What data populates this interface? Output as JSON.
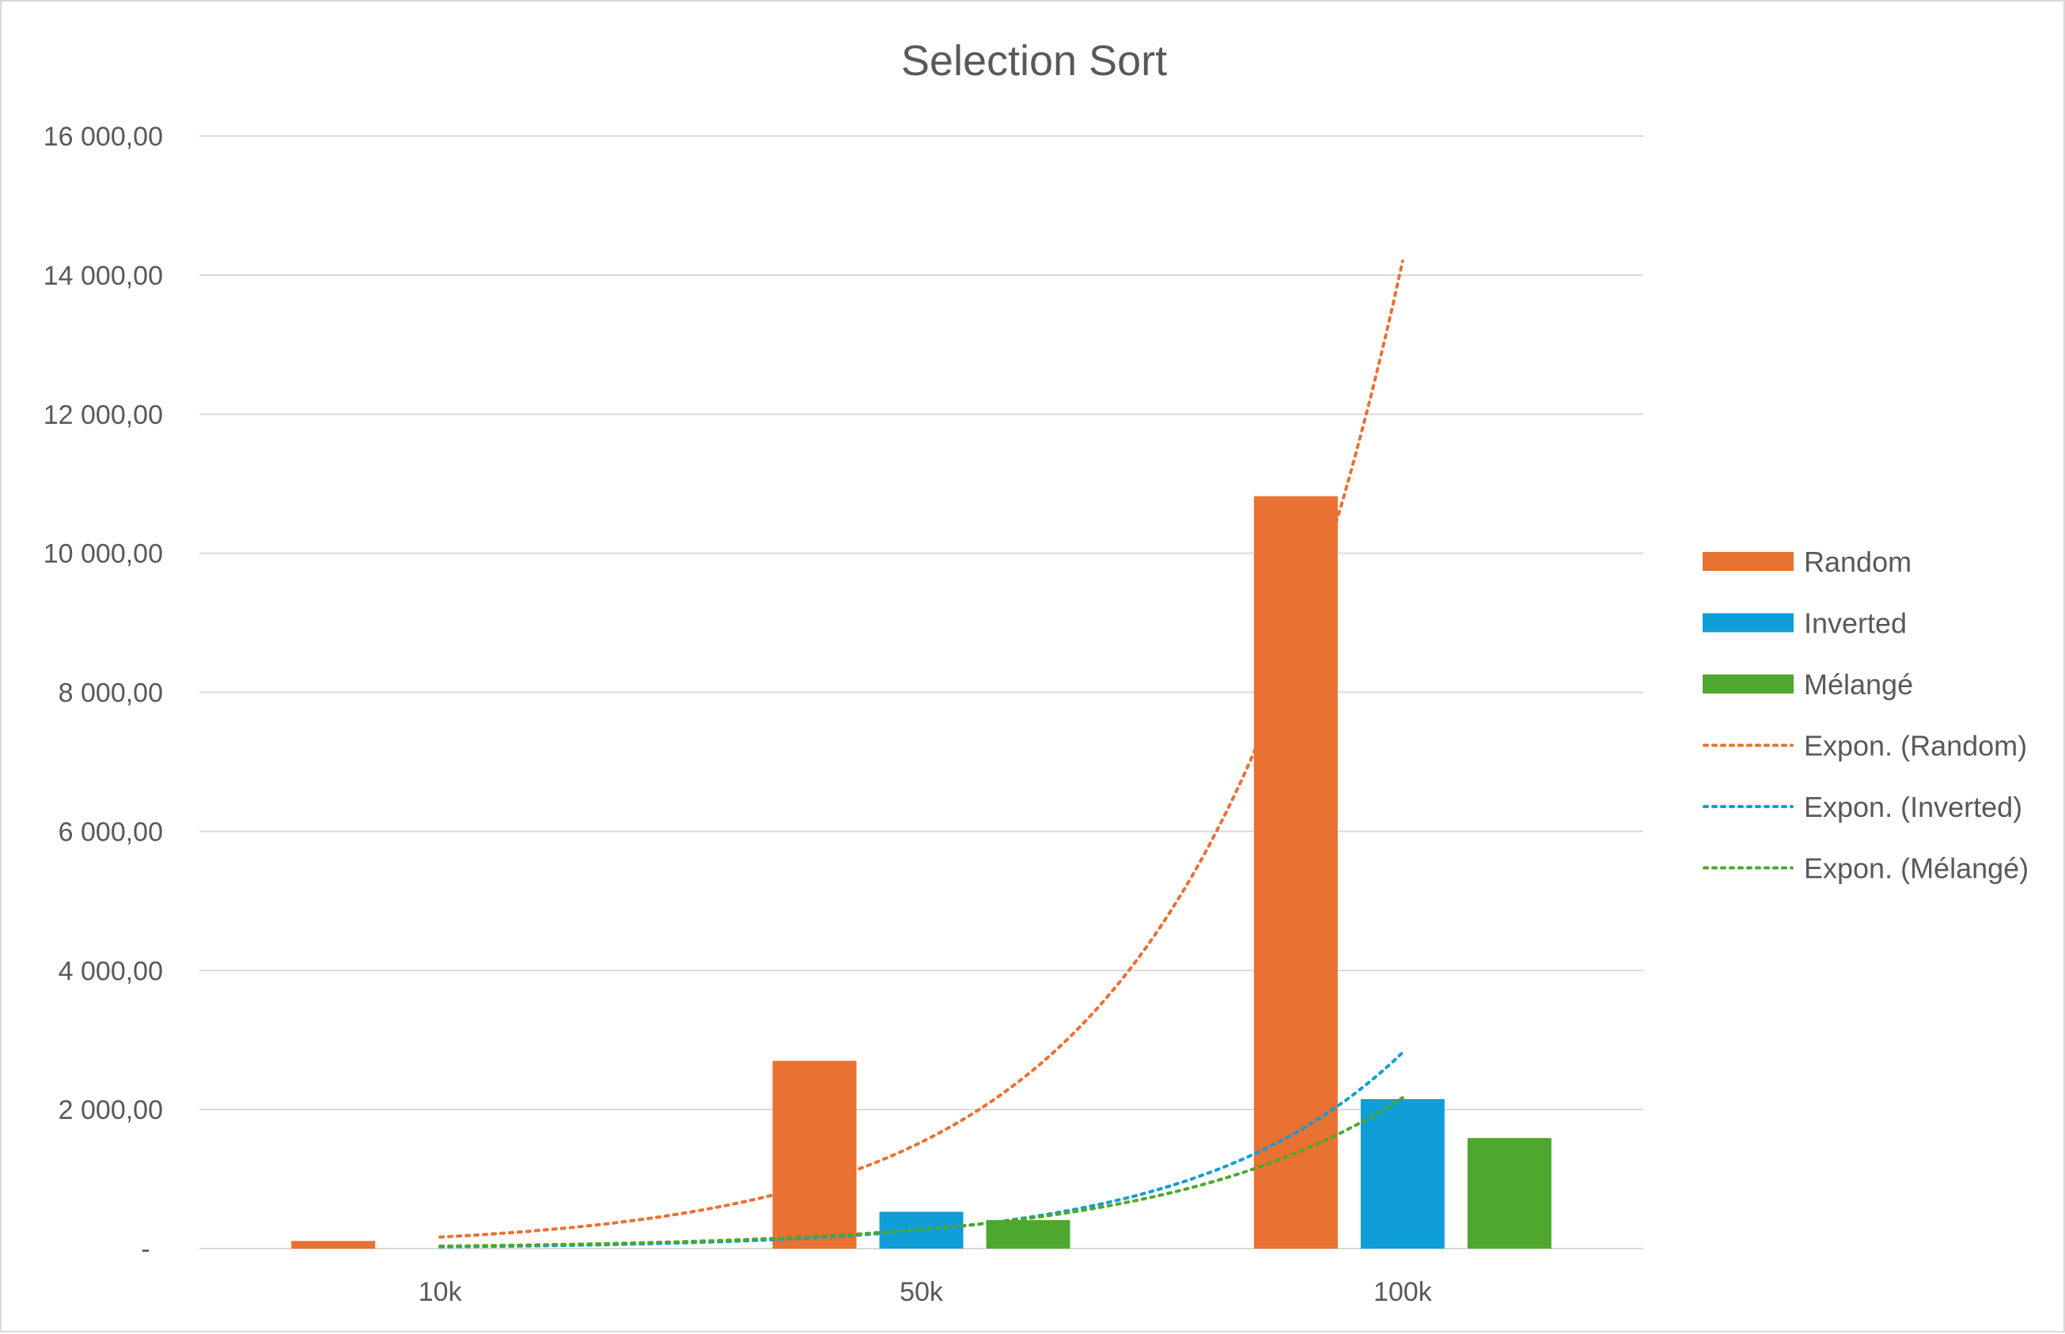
{
  "colors": {
    "random": "#E97132",
    "inverted": "#0F9ED5",
    "melange": "#4EA72E",
    "grid": "#d9d9d9",
    "text": "#595959"
  },
  "chart_data": {
    "type": "bar",
    "title": "Selection Sort",
    "xlabel": "",
    "ylabel": "",
    "categories": [
      "10k",
      "50k",
      "100k"
    ],
    "ylim": [
      0,
      16000
    ],
    "y_ticks": [
      0,
      2000,
      4000,
      6000,
      8000,
      10000,
      12000,
      14000,
      16000
    ],
    "y_tick_labels": [
      "-",
      "2 000,00",
      "4 000,00",
      "6 000,00",
      "8 000,00",
      "10 000,00",
      "12 000,00",
      "14 000,00",
      "16 000,00"
    ],
    "grid": true,
    "legend_position": "right",
    "series": [
      {
        "name": "Random",
        "color": "#E97132",
        "values": [
          110,
          2700,
          10820
        ]
      },
      {
        "name": "Inverted",
        "color": "#0F9ED5",
        "values": [
          0,
          530,
          2150
        ]
      },
      {
        "name": "Mélangé",
        "color": "#4EA72E",
        "values": [
          0,
          410,
          1590
        ]
      }
    ],
    "trendlines": [
      {
        "name": "Expon. (Random)",
        "type": "exponential",
        "color": "#E97132",
        "values": [
          165,
          1530,
          14200
        ]
      },
      {
        "name": "Expon. (Inverted)",
        "type": "exponential",
        "color": "#0F9ED5",
        "values": [
          25,
          265,
          2820
        ]
      },
      {
        "name": "Expon. (Mélangé)",
        "type": "exponential",
        "color": "#4EA72E",
        "values": [
          35,
          275,
          2170
        ]
      }
    ]
  }
}
